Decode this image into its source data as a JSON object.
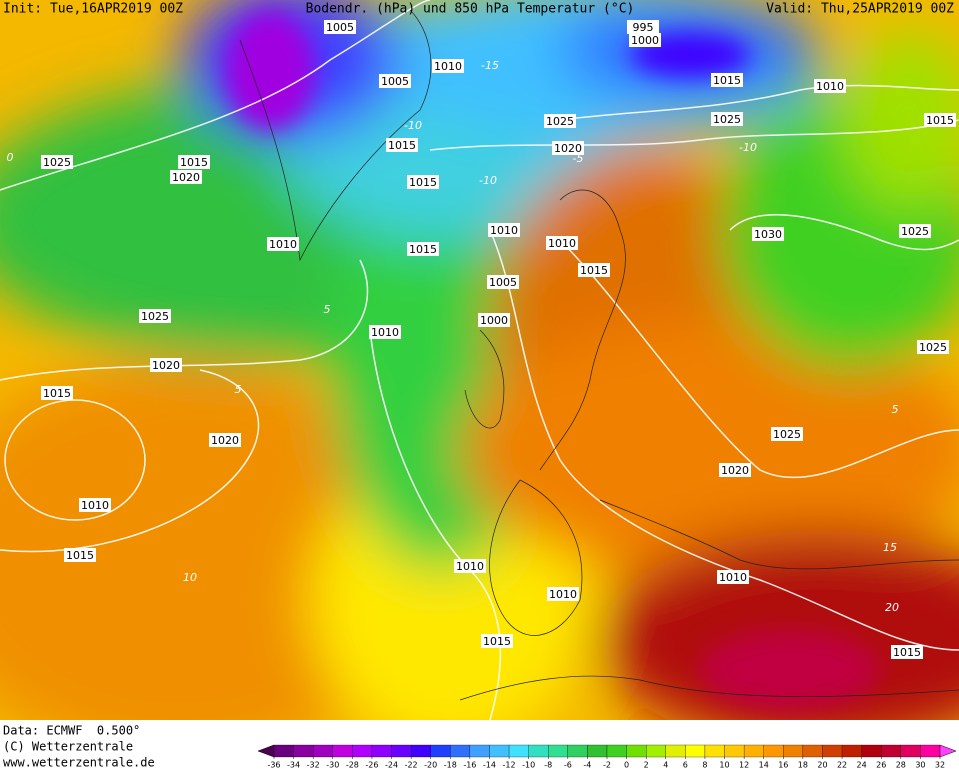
{
  "header": {
    "init": "Init: Tue,16APR2019 00Z",
    "title": "Bodendr. (hPa) und 850 hPa Temperatur (°C)",
    "valid": "Valid: Thu,25APR2019 00Z"
  },
  "footer": {
    "data": "Data: ECMWF  0.500°",
    "copyright": "(C) Wetterzentrale",
    "url": "www.wetterzentrale.de"
  },
  "isobar_labels": [
    1005,
    1010,
    1005,
    995,
    1000,
    1015,
    1010,
    1015,
    1025,
    1025,
    1020,
    1015,
    1015,
    1020,
    1025,
    1015,
    1010,
    1015,
    1010,
    1010,
    1015,
    1030,
    1025,
    1005,
    1000,
    1010,
    1025,
    1020,
    1015,
    1025,
    1020,
    1025,
    1020,
    1010,
    1015,
    1010,
    1010,
    1010,
    1015,
    1015
  ],
  "temperature_labels": [
    -15,
    -10,
    -10,
    -10,
    -5,
    0,
    5,
    5,
    5,
    10,
    15,
    20
  ],
  "colorbar": {
    "ticks": [
      -36,
      -34,
      -32,
      -30,
      -28,
      -26,
      -24,
      -22,
      -20,
      -18,
      -16,
      -14,
      -12,
      -10,
      -8,
      -6,
      -4,
      -2,
      0,
      2,
      4,
      6,
      8,
      10,
      12,
      14,
      16,
      18,
      20,
      22,
      24,
      26,
      28,
      30,
      32
    ],
    "colors": [
      "#4b0050",
      "#6a0080",
      "#8800a0",
      "#a000c0",
      "#c000e0",
      "#b000ff",
      "#9000ff",
      "#6a00ff",
      "#4000ff",
      "#2040ff",
      "#3070ff",
      "#40a0ff",
      "#40c0ff",
      "#40e0ff",
      "#30e0c0",
      "#30e090",
      "#30d060",
      "#30c030",
      "#40d020",
      "#70e000",
      "#a0f000",
      "#e0f000",
      "#ffff00",
      "#ffe000",
      "#ffc800",
      "#ffb000",
      "#ff9800",
      "#f08000",
      "#e06000",
      "#d04000",
      "#c02000",
      "#b00010",
      "#c00030",
      "#e00060",
      "#ff00a0",
      "#ff40ff"
    ]
  }
}
